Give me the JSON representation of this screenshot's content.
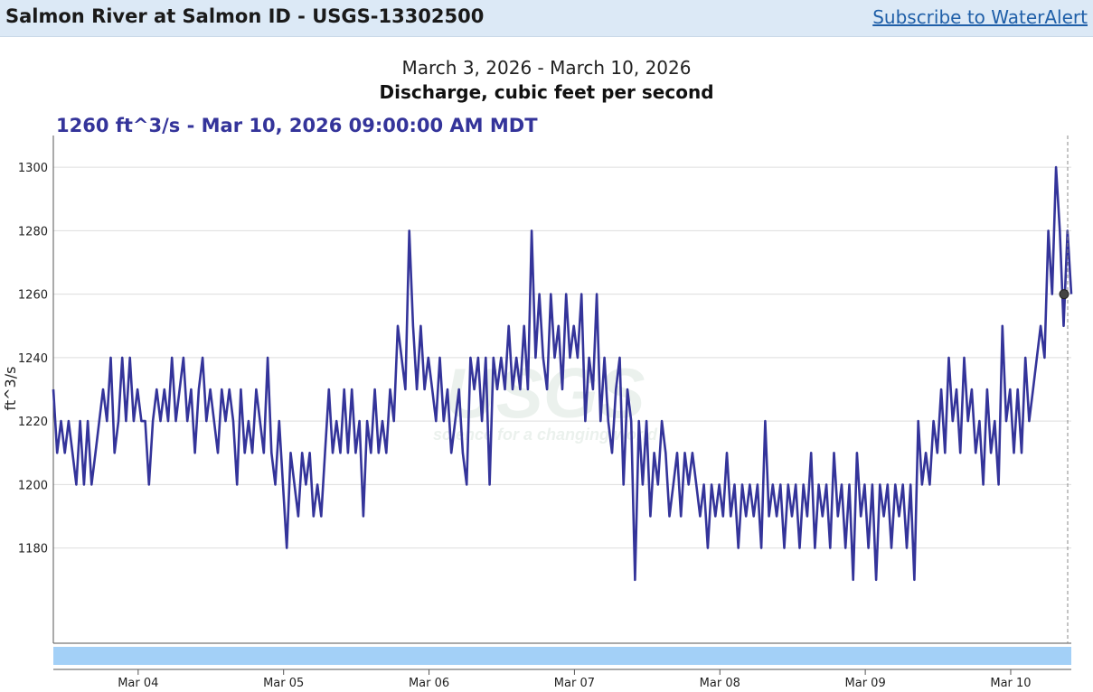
{
  "header": {
    "title": "Salmon River at Salmon ID - USGS-13302500",
    "subscribe_link": "Subscribe to WaterAlert"
  },
  "chart_header": {
    "date_range": "March 3, 2026 - March 10, 2026",
    "title": "Discharge, cubic feet per second",
    "readout": "1260 ft^3/s - Mar 10, 2026 09:00:00 AM MDT"
  },
  "watermark": {
    "text": "USGS",
    "tagline": "science for a changing world"
  },
  "colors": {
    "series": "#34349a",
    "grid": "#dddddd",
    "topbar": "#dce9f6",
    "brush": "#a3d0f7",
    "link": "#1f5fa8"
  },
  "chart_data": {
    "type": "line",
    "title": "Discharge, cubic feet per second",
    "ylabel": "ft^3/s",
    "xlabel": "",
    "ylim": [
      1150,
      1310
    ],
    "xlim": [
      "2026-03-03 10:00",
      "2026-03-10 10:00"
    ],
    "yticks": [
      1180,
      1200,
      1220,
      1240,
      1260,
      1280,
      1300
    ],
    "xticks": [
      {
        "label": "Mar 04",
        "date": "2026-03-04 00:00"
      },
      {
        "label": "Mar 05",
        "date": "2026-03-05 00:00"
      },
      {
        "label": "Mar 06",
        "date": "2026-03-06 00:00"
      },
      {
        "label": "Mar 07",
        "date": "2026-03-07 00:00"
      },
      {
        "label": "Mar 08",
        "date": "2026-03-08 00:00"
      },
      {
        "label": "Mar 09",
        "date": "2026-03-09 00:00"
      },
      {
        "label": "Mar 10",
        "date": "2026-03-10 00:00"
      }
    ],
    "grid": true,
    "interval_minutes": 15,
    "start": "2026-03-03 10:00",
    "hover_point": {
      "date": "2026-03-10 09:00",
      "value": 1260
    },
    "series": [
      {
        "values": [
          1230,
          1210,
          1220,
          1210,
          1220,
          1210,
          1200,
          1220,
          1200,
          1220,
          1200,
          1210,
          1220,
          1230,
          1220,
          1240,
          1210,
          1220,
          1240,
          1220,
          1240,
          1220,
          1230,
          1220,
          1220,
          1200,
          1220,
          1230,
          1220,
          1230,
          1220,
          1240,
          1220,
          1230,
          1240,
          1220,
          1230,
          1210,
          1230,
          1240,
          1220,
          1230,
          1220,
          1210,
          1230,
          1220,
          1230,
          1220,
          1200,
          1230,
          1210,
          1220,
          1210,
          1230,
          1220,
          1210,
          1240,
          1210,
          1200,
          1220,
          1200,
          1180,
          1210,
          1200,
          1190,
          1210,
          1200,
          1210,
          1190,
          1200,
          1190,
          1210,
          1230,
          1210,
          1220,
          1210,
          1230,
          1210,
          1230,
          1210,
          1220,
          1190,
          1220,
          1210,
          1230,
          1210,
          1220,
          1210,
          1230,
          1220,
          1250,
          1240,
          1230,
          1280,
          1250,
          1230,
          1250,
          1230,
          1240,
          1230,
          1220,
          1240,
          1220,
          1230,
          1210,
          1220,
          1230,
          1210,
          1200,
          1240,
          1230,
          1240,
          1220,
          1240,
          1200,
          1240,
          1230,
          1240,
          1230,
          1250,
          1230,
          1240,
          1230,
          1250,
          1230,
          1280,
          1240,
          1260,
          1240,
          1230,
          1260,
          1240,
          1250,
          1230,
          1260,
          1240,
          1250,
          1240,
          1260,
          1220,
          1240,
          1230,
          1260,
          1220,
          1240,
          1220,
          1210,
          1230,
          1240,
          1200,
          1230,
          1220,
          1170,
          1220,
          1200,
          1220,
          1190,
          1210,
          1200,
          1220,
          1210,
          1190,
          1200,
          1210,
          1190,
          1210,
          1200,
          1210,
          1200,
          1190,
          1200,
          1180,
          1200,
          1190,
          1200,
          1190,
          1210,
          1190,
          1200,
          1180,
          1200,
          1190,
          1200,
          1190,
          1200,
          1180,
          1220,
          1190,
          1200,
          1190,
          1200,
          1180,
          1200,
          1190,
          1200,
          1180,
          1200,
          1190,
          1210,
          1180,
          1200,
          1190,
          1200,
          1180,
          1210,
          1190,
          1200,
          1180,
          1200,
          1170,
          1210,
          1190,
          1200,
          1180,
          1200,
          1170,
          1200,
          1190,
          1200,
          1180,
          1200,
          1190,
          1200,
          1180,
          1200,
          1170,
          1220,
          1200,
          1210,
          1200,
          1220,
          1210,
          1230,
          1210,
          1240,
          1220,
          1230,
          1210,
          1240,
          1220,
          1230,
          1210,
          1220,
          1200,
          1230,
          1210,
          1220,
          1200,
          1250,
          1220,
          1230,
          1210,
          1230,
          1210,
          1240,
          1220,
          1230,
          1240,
          1250,
          1240,
          1280,
          1260,
          1300,
          1280,
          1250,
          1280,
          1260
        ]
      }
    ]
  }
}
